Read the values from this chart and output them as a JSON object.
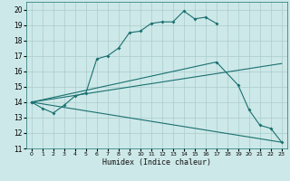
{
  "xlabel": "Humidex (Indice chaleur)",
  "xlim": [
    -0.5,
    23.5
  ],
  "ylim": [
    11,
    20.5
  ],
  "xticks": [
    0,
    1,
    2,
    3,
    4,
    5,
    6,
    7,
    8,
    9,
    10,
    11,
    12,
    13,
    14,
    15,
    16,
    17,
    18,
    19,
    20,
    21,
    22,
    23
  ],
  "yticks": [
    11,
    12,
    13,
    14,
    15,
    16,
    17,
    18,
    19,
    20
  ],
  "background_color": "#cde8e8",
  "grid_color": "#aacccc",
  "line_color": "#1a7070",
  "s1x": [
    0,
    1,
    2,
    3,
    4,
    5,
    6,
    7,
    8,
    9,
    10,
    11,
    12,
    13,
    14,
    15,
    16,
    17
  ],
  "s1y": [
    14.0,
    13.6,
    13.3,
    13.8,
    14.4,
    14.6,
    16.8,
    17.0,
    17.5,
    18.5,
    18.6,
    19.1,
    19.2,
    19.2,
    19.9,
    19.4,
    19.5,
    19.1
  ],
  "s2x": [
    0,
    17,
    19,
    20,
    21,
    22,
    23
  ],
  "s2y": [
    14.0,
    16.6,
    15.1,
    13.5,
    12.5,
    12.3,
    11.4
  ],
  "s3x": [
    0,
    23
  ],
  "s3y": [
    14.0,
    16.5
  ],
  "s4x": [
    0,
    23
  ],
  "s4y": [
    14.0,
    11.4
  ]
}
